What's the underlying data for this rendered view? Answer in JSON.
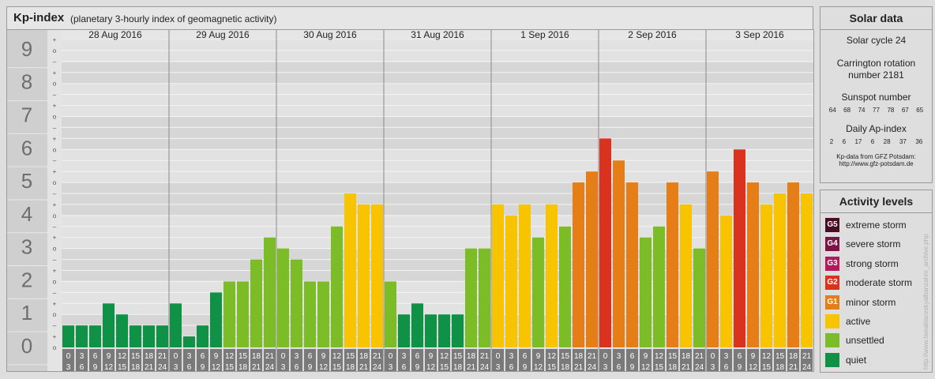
{
  "header": {
    "title": "Kp-index",
    "subtitle": "(planetary 3-hourly index of geomagnetic activity)"
  },
  "chart_data": {
    "type": "bar",
    "title": "Kp-index",
    "subtitle": "(planetary 3-hourly index of geomagnetic activity)",
    "ylim": [
      0,
      9
    ],
    "y_ticks": [
      "0",
      "1",
      "2",
      "3",
      "4",
      "5",
      "6",
      "7",
      "8",
      "9"
    ],
    "minor_tick_labels": [
      "o",
      "+",
      "–",
      "o"
    ],
    "days": [
      "28 Aug 2016",
      "29 Aug 2016",
      "30 Aug 2016",
      "31 Aug 2016",
      "1 Sep 2016",
      "2 Sep 2016",
      "3 Sep 2016"
    ],
    "interval_labels": [
      [
        "0",
        "3"
      ],
      [
        "3",
        "6"
      ],
      [
        "6",
        "9"
      ],
      [
        "9",
        "12"
      ],
      [
        "12",
        "15"
      ],
      [
        "15",
        "18"
      ],
      [
        "18",
        "21"
      ],
      [
        "21",
        "24"
      ]
    ],
    "values": [
      [
        0.333,
        0.333,
        0.333,
        1,
        0.667,
        0.333,
        0.333,
        0.333
      ],
      [
        1,
        0,
        0.333,
        1.333,
        1.667,
        1.667,
        2.333,
        3
      ],
      [
        2.667,
        2.333,
        1.667,
        1.667,
        3.333,
        4.333,
        4,
        4
      ],
      [
        1.667,
        0.667,
        1,
        0.667,
        0.667,
        0.667,
        2.667,
        2.667
      ],
      [
        4,
        3.667,
        4,
        3,
        4,
        3.333,
        4.667,
        5
      ],
      [
        6,
        5.333,
        4.667,
        3,
        3.333,
        4.667,
        4,
        2.667
      ],
      [
        5,
        3.667,
        5.667,
        4.667,
        4,
        4.333,
        4.667,
        4.333
      ]
    ],
    "grid": true
  },
  "colors": {
    "quiet": "#0f9146",
    "unsettled": "#7cbc27",
    "active": "#f8c400",
    "minor": "#e67e17",
    "moderate": "#d93320",
    "strong": "#b5195b",
    "severe": "#7d1345",
    "extreme": "#4a0c23"
  },
  "solar": {
    "title": "Solar data",
    "cycle": "Solar cycle 24",
    "carrington_line1": "Carrington rotation",
    "carrington_line2": "number 2181",
    "sunspot_title": "Sunspot number",
    "sunspot_values": [
      "64",
      "68",
      "74",
      "77",
      "78",
      "67",
      "65"
    ],
    "ap_title": "Daily Ap-index",
    "ap_values": [
      "2",
      "6",
      "17",
      "6",
      "28",
      "37",
      "36"
    ],
    "source_line1": "Kp-data from GFZ Potsdam:",
    "source_line2": "http://www.gfz-potsdam.de"
  },
  "activity": {
    "title": "Activity levels",
    "items": [
      {
        "badge": "G5",
        "label": "extreme storm",
        "color": "#4a0c23"
      },
      {
        "badge": "G4",
        "label": "severe storm",
        "color": "#7d1345"
      },
      {
        "badge": "G3",
        "label": "strong storm",
        "color": "#b5195b"
      },
      {
        "badge": "G2",
        "label": "moderate storm",
        "color": "#d93320"
      },
      {
        "badge": "G1",
        "label": "minor storm",
        "color": "#e67e17"
      },
      {
        "badge": "",
        "label": "active",
        "color": "#f8c400"
      },
      {
        "badge": "",
        "label": "unsettled",
        "color": "#7cbc27"
      },
      {
        "badge": "",
        "label": "quiet",
        "color": "#0f9146"
      }
    ]
  },
  "credit": "http://www.tweaklaceskyalbanzah/o_archive.php"
}
